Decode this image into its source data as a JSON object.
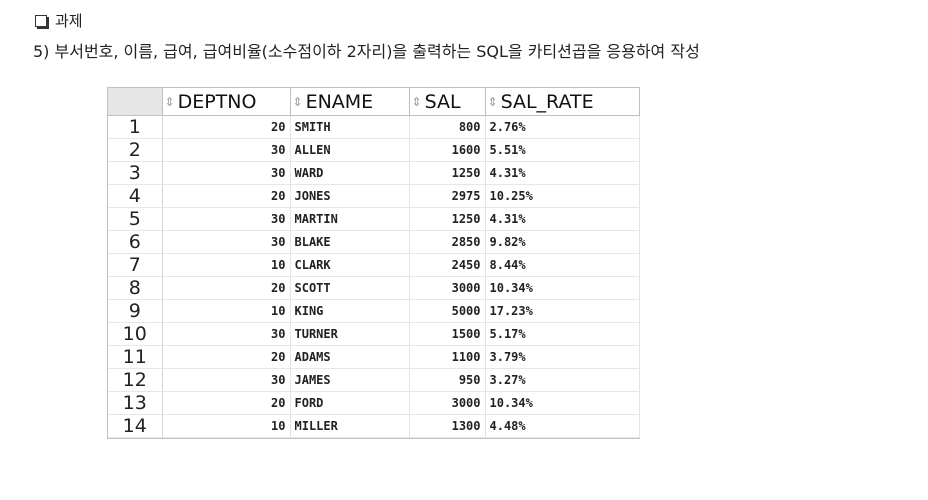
{
  "heading": {
    "icon": "checkbox-icon",
    "title": "과제"
  },
  "task": {
    "text": "5) 부서번호, 이름, 급여, 급여비율(소수점이하 2자리)을 출력하는 SQL을  카티션곱을  응용하여 작성"
  },
  "grid": {
    "sort_icon": "sort-icon",
    "columns": [
      "DEPTNO",
      "ENAME",
      "SAL",
      "SAL_RATE"
    ],
    "rows": [
      {
        "n": "1",
        "deptno": "20",
        "ename": "SMITH",
        "sal": "800",
        "rate": "2.76%"
      },
      {
        "n": "2",
        "deptno": "30",
        "ename": "ALLEN",
        "sal": "1600",
        "rate": "5.51%"
      },
      {
        "n": "3",
        "deptno": "30",
        "ename": "WARD",
        "sal": "1250",
        "rate": "4.31%"
      },
      {
        "n": "4",
        "deptno": "20",
        "ename": "JONES",
        "sal": "2975",
        "rate": "10.25%"
      },
      {
        "n": "5",
        "deptno": "30",
        "ename": "MARTIN",
        "sal": "1250",
        "rate": "4.31%"
      },
      {
        "n": "6",
        "deptno": "30",
        "ename": "BLAKE",
        "sal": "2850",
        "rate": "9.82%"
      },
      {
        "n": "7",
        "deptno": "10",
        "ename": "CLARK",
        "sal": "2450",
        "rate": "8.44%"
      },
      {
        "n": "8",
        "deptno": "20",
        "ename": "SCOTT",
        "sal": "3000",
        "rate": "10.34%"
      },
      {
        "n": "9",
        "deptno": "10",
        "ename": "KING",
        "sal": "5000",
        "rate": "17.23%"
      },
      {
        "n": "10",
        "deptno": "30",
        "ename": "TURNER",
        "sal": "1500",
        "rate": "5.17%"
      },
      {
        "n": "11",
        "deptno": "20",
        "ename": "ADAMS",
        "sal": "1100",
        "rate": "3.79%"
      },
      {
        "n": "12",
        "deptno": "30",
        "ename": "JAMES",
        "sal": "950",
        "rate": "3.27%"
      },
      {
        "n": "13",
        "deptno": "20",
        "ename": "FORD",
        "sal": "3000",
        "rate": "10.34%"
      },
      {
        "n": "14",
        "deptno": "10",
        "ename": "MILLER",
        "sal": "1300",
        "rate": "4.48%"
      }
    ]
  }
}
